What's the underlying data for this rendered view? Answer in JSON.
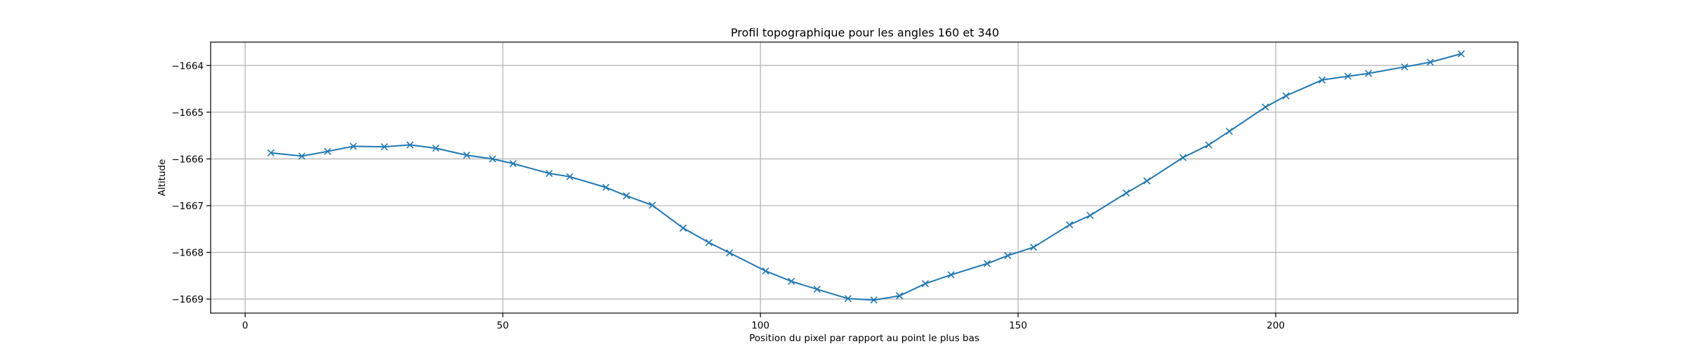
{
  "chart_data": {
    "type": "line",
    "title": "Profil topographique pour les angles 160 et 340",
    "xlabel": "Position du pixel par rapport au point le plus bas",
    "ylabel": "Altitude",
    "xlim": [
      -6.7,
      247
    ],
    "ylim": [
      -1669.3,
      -1663.5
    ],
    "xticks": [
      0,
      50,
      100,
      150,
      200
    ],
    "yticks": [
      -1664,
      -1665,
      -1666,
      -1667,
      -1668,
      -1669
    ],
    "ytick_labels": [
      "−1664",
      "−1665",
      "−1666",
      "−1667",
      "−1668",
      "−1669"
    ],
    "grid": true,
    "marker": "x",
    "color": "#1f77b4",
    "series": [
      {
        "x": [
          5,
          11,
          16,
          21,
          27,
          32,
          37,
          43,
          48,
          52,
          59,
          63,
          70,
          74,
          79,
          85,
          90,
          94,
          101,
          106,
          111,
          117,
          122,
          127,
          132,
          137,
          144,
          148,
          153,
          160,
          164,
          171,
          175,
          182,
          187,
          191,
          198,
          202,
          209,
          214,
          218,
          225,
          230,
          236
        ],
        "y": [
          -1665.87,
          -1665.94,
          -1665.84,
          -1665.73,
          -1665.74,
          -1665.7,
          -1665.77,
          -1665.92,
          -1666.0,
          -1666.1,
          -1666.31,
          -1666.38,
          -1666.61,
          -1666.79,
          -1666.99,
          -1667.48,
          -1667.79,
          -1668.01,
          -1668.4,
          -1668.62,
          -1668.79,
          -1668.99,
          -1669.02,
          -1668.93,
          -1668.67,
          -1668.48,
          -1668.24,
          -1668.07,
          -1667.89,
          -1667.41,
          -1667.21,
          -1666.73,
          -1666.47,
          -1665.97,
          -1665.7,
          -1665.41,
          -1664.89,
          -1664.65,
          -1664.31,
          -1664.23,
          -1664.17,
          -1664.03,
          -1663.93,
          -1663.75
        ]
      }
    ]
  }
}
